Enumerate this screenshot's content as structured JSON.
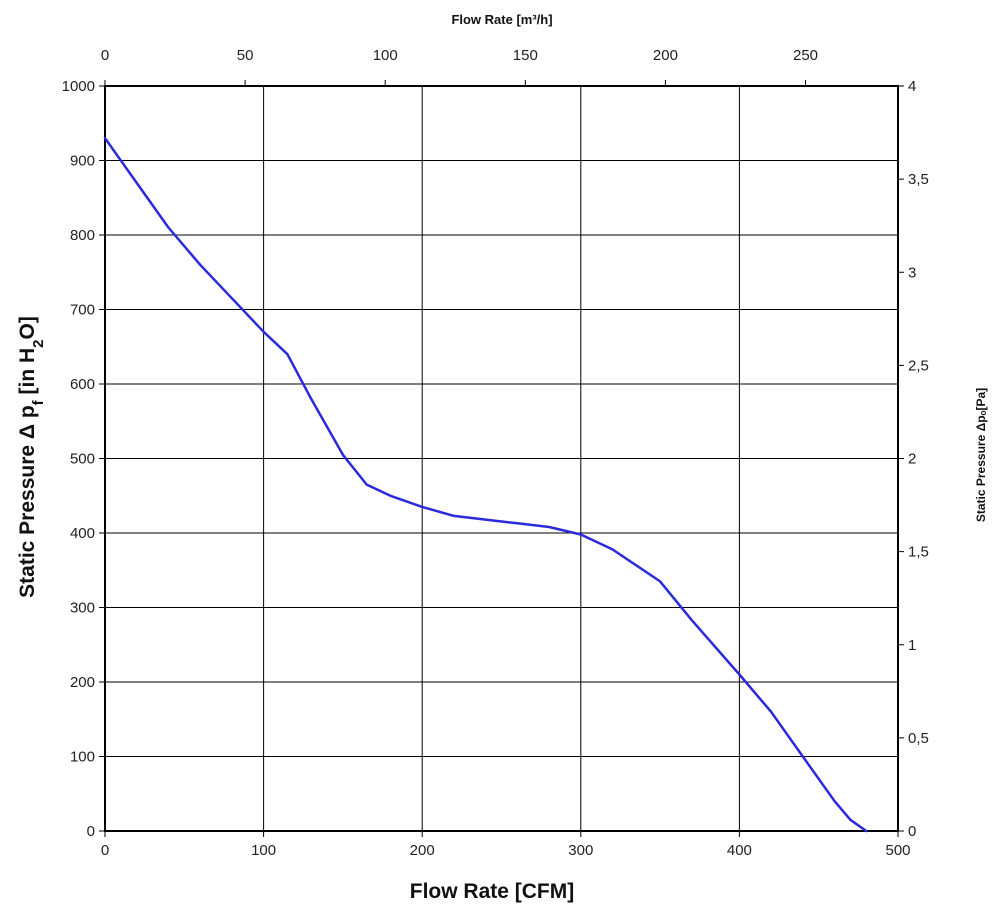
{
  "chart_data": {
    "type": "line",
    "title": "",
    "xlabel": "Flow Rate [CFM]",
    "x2label": "Flow Rate [m³/h]",
    "ylabel_main": "Static Pressure Δ p",
    "ylabel_sub": "f",
    "ylabel_tail_a": " [in H",
    "ylabel_tail_sub": "2",
    "ylabel_tail_b": "O]",
    "y2label": "Static Pressure Δpₒ[Pa]",
    "xlim": [
      0,
      500
    ],
    "ylim": [
      0,
      1000
    ],
    "x2lim": [
      0,
      283
    ],
    "y2lim": [
      0,
      4
    ],
    "grid": true,
    "legend": "none",
    "line_color": "#2a2adb",
    "x_ticks": [
      "0",
      "100",
      "200",
      "300",
      "400",
      "500"
    ],
    "y_ticks": [
      "0",
      "100",
      "200",
      "300",
      "400",
      "500",
      "600",
      "700",
      "800",
      "900",
      "1000"
    ],
    "x2_ticks": [
      "0",
      "50",
      "100",
      "150",
      "200",
      "250"
    ],
    "y2_ticks": [
      "0",
      "0,5",
      "1",
      "1,5",
      "2",
      "2,5",
      "3",
      "3,5",
      "4"
    ],
    "series": [
      {
        "x": [
          0,
          20,
          40,
          60,
          80,
          100,
          115,
          130,
          150,
          165,
          180,
          200,
          220,
          240,
          260,
          280,
          300,
          320,
          350,
          370,
          400,
          420,
          440,
          460,
          470,
          480
        ],
        "y": [
          930,
          870,
          810,
          760,
          715,
          670,
          640,
          580,
          505,
          465,
          450,
          435,
          423,
          418,
          413,
          408,
          398,
          378,
          335,
          283,
          210,
          160,
          100,
          40,
          15,
          0
        ]
      }
    ]
  }
}
